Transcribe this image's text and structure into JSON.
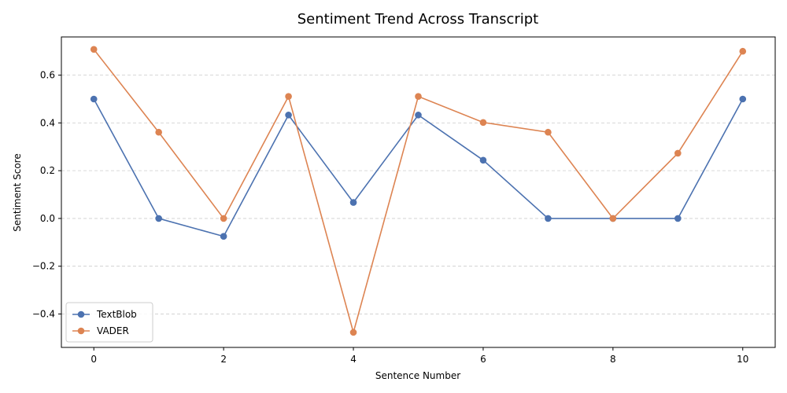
{
  "chart_data": {
    "type": "line",
    "title": "Sentiment Trend Across Transcript",
    "xlabel": "Sentence Number",
    "ylabel": "Sentiment Score",
    "x": [
      0,
      1,
      2,
      3,
      4,
      5,
      6,
      7,
      8,
      9,
      10
    ],
    "xlim": [
      -0.5,
      10.5
    ],
    "ylim": [
      -0.54,
      0.76
    ],
    "xticks": [
      0,
      2,
      4,
      6,
      8,
      10
    ],
    "yticks": [
      -0.4,
      -0.2,
      0.0,
      0.2,
      0.4,
      0.6
    ],
    "ytick_labels": [
      "−0.4",
      "−0.2",
      "0.0",
      "0.2",
      "0.4",
      "0.6"
    ],
    "grid": "y-dashed",
    "legend_position": "lower-left",
    "series": [
      {
        "name": "TextBlob",
        "color": "#4c72b0",
        "values": [
          0.5,
          0.0,
          -0.075,
          0.433,
          0.067,
          0.433,
          0.244,
          0.0,
          0.0,
          0.0,
          0.5
        ]
      },
      {
        "name": "VADER",
        "color": "#dd8452",
        "values": [
          0.708,
          0.361,
          0.0,
          0.511,
          -0.477,
          0.511,
          0.402,
          0.361,
          0.0,
          0.273,
          0.7
        ]
      }
    ]
  }
}
